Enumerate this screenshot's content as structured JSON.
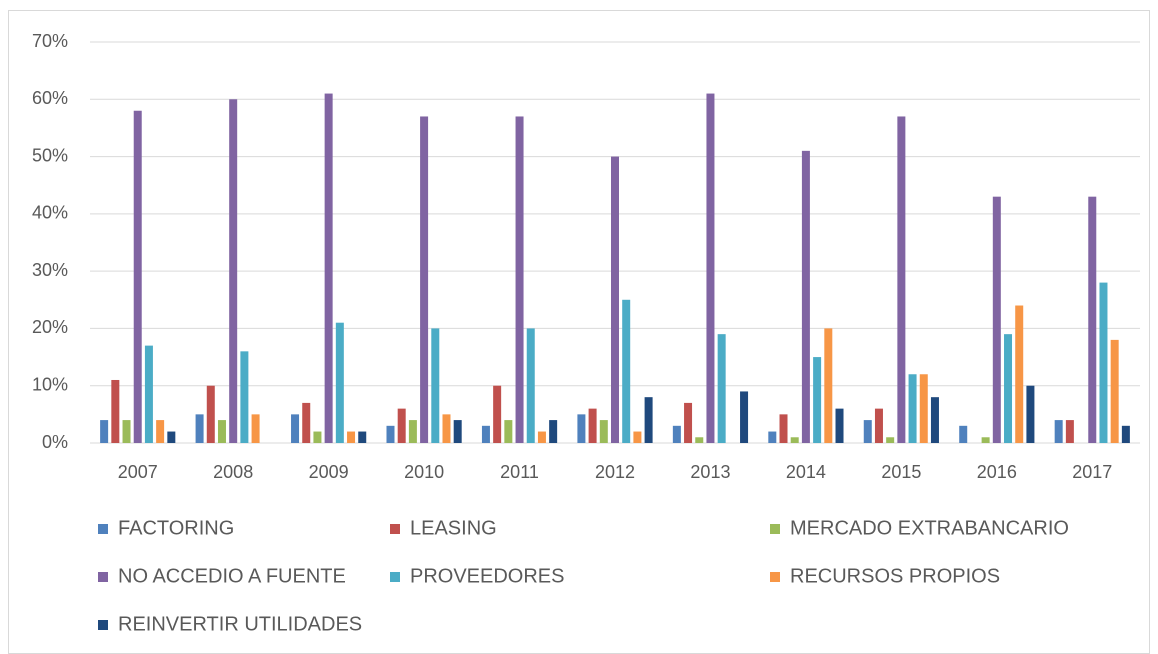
{
  "chart_data": {
    "type": "bar",
    "categories": [
      "2007",
      "2008",
      "2009",
      "2010",
      "2011",
      "2012",
      "2013",
      "2014",
      "2015",
      "2016",
      "2017"
    ],
    "series": [
      {
        "name": "FACTORING",
        "color": "#4f81bd",
        "values": [
          4,
          5,
          5,
          3,
          3,
          5,
          3,
          2,
          4,
          3,
          4
        ]
      },
      {
        "name": "LEASING",
        "color": "#c0504d",
        "values": [
          11,
          10,
          7,
          6,
          10,
          6,
          7,
          5,
          6,
          0,
          4
        ]
      },
      {
        "name": "MERCADO EXTRABANCARIO",
        "color": "#9bbb59",
        "values": [
          4,
          4,
          2,
          4,
          4,
          4,
          1,
          1,
          1,
          1,
          0
        ]
      },
      {
        "name": "NO ACCEDIO A FUENTE",
        "color": "#8064a2",
        "values": [
          58,
          60,
          61,
          57,
          57,
          50,
          61,
          51,
          57,
          43,
          43
        ]
      },
      {
        "name": "PROVEEDORES",
        "color": "#4bacc6",
        "values": [
          17,
          16,
          21,
          20,
          20,
          25,
          19,
          15,
          12,
          19,
          28
        ]
      },
      {
        "name": "RECURSOS PROPIOS",
        "color": "#f79646",
        "values": [
          4,
          5,
          2,
          5,
          2,
          2,
          0,
          20,
          12,
          24,
          18
        ]
      },
      {
        "name": "REINVERTIR UTILIDADES",
        "color": "#1f497d",
        "values": [
          2,
          0,
          2,
          4,
          4,
          8,
          9,
          6,
          8,
          10,
          3
        ]
      }
    ],
    "ylim": [
      0,
      70
    ],
    "yticks": [
      {
        "value": 0,
        "label": "0%"
      },
      {
        "value": 10,
        "label": "10%"
      },
      {
        "value": 20,
        "label": "20%"
      },
      {
        "value": 30,
        "label": "30%"
      },
      {
        "value": 40,
        "label": "40%"
      },
      {
        "value": 50,
        "label": "50%"
      },
      {
        "value": 60,
        "label": "60%"
      },
      {
        "value": 70,
        "label": "70%"
      }
    ],
    "grid": true,
    "legend": "bottom"
  }
}
